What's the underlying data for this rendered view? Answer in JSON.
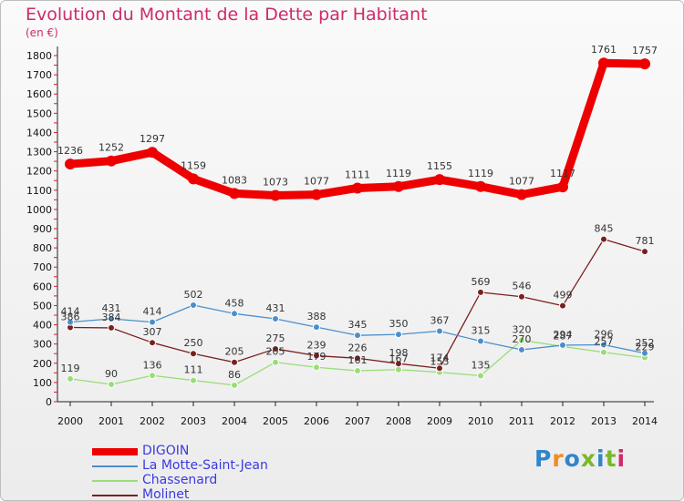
{
  "title": "Evolution du Montant de la Dette par Habitant",
  "subtitle": "(en €)",
  "logo": {
    "text": "Proxiti",
    "colors": [
      "#2f86c9",
      "#f08c22",
      "#2f86c9",
      "#79b82a",
      "#2f86c9",
      "#79b82a",
      "#cf2a6b"
    ]
  },
  "chart_data": {
    "type": "line",
    "x": [
      2000,
      2001,
      2002,
      2003,
      2004,
      2005,
      2006,
      2007,
      2008,
      2009,
      2010,
      2011,
      2012,
      2013,
      2014
    ],
    "ylim": [
      0,
      1800
    ],
    "yticks": [
      0,
      100,
      200,
      300,
      400,
      500,
      600,
      700,
      800,
      900,
      1000,
      1100,
      1200,
      1300,
      1400,
      1500,
      1600,
      1700,
      1800
    ],
    "grid": false,
    "legend_position": "bottom-left",
    "series": [
      {
        "name": "DIGOIN",
        "color": "#ee0000",
        "values": [
          1236,
          1252,
          1297,
          1159,
          1083,
          1073,
          1077,
          1111,
          1119,
          1155,
          1119,
          1077,
          1117,
          1761,
          1757
        ],
        "labels": [
          "1236",
          "1252",
          "1297",
          "1159",
          "1083",
          "1073",
          "1077",
          "1111",
          "1119",
          "1155",
          "1119",
          "1077",
          "1117",
          "1761",
          "1757"
        ]
      },
      {
        "name": "La Motte-Saint-Jean",
        "color": "#4a8fcc",
        "values": [
          414,
          431,
          414,
          502,
          458,
          431,
          388,
          345,
          350,
          367,
          315,
          270,
          294,
          296,
          252
        ],
        "labels": [
          "414",
          "431",
          "414",
          "502",
          "458",
          "431",
          "388",
          "345",
          "350",
          "367",
          "315",
          "270",
          "294",
          "296",
          "252"
        ]
      },
      {
        "name": "Chassenard",
        "color": "#99dd77",
        "values": [
          119,
          90,
          136,
          111,
          86,
          205,
          179,
          161,
          167,
          153,
          135,
          320,
          287,
          257,
          229
        ],
        "labels": [
          "119",
          "90",
          "136",
          "111",
          "86",
          "205",
          "179",
          "161",
          "167",
          "153",
          "135",
          "320",
          "287",
          "257",
          "229"
        ]
      },
      {
        "name": "Molinet",
        "color": "#7a1f1f",
        "values": [
          386,
          384,
          307,
          250,
          205,
          275,
          239,
          226,
          198,
          174,
          569,
          546,
          499,
          845,
          781
        ],
        "labels": [
          "386",
          "384",
          "307",
          "250",
          "205",
          "275",
          "239",
          "226",
          "198",
          "174",
          "569",
          "546",
          "499",
          "845",
          "781"
        ]
      }
    ]
  }
}
